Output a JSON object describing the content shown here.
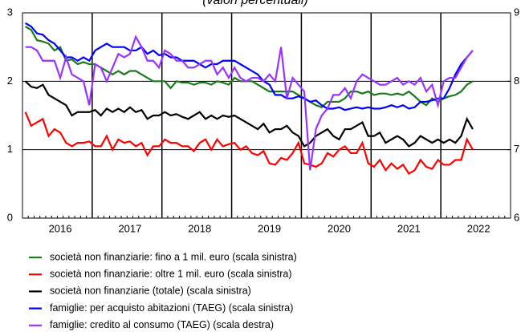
{
  "chart_data": {
    "type": "line",
    "title": "(valori percentuali)",
    "categories": [
      null,
      null,
      null,
      null,
      null,
      null,
      "2016",
      null,
      null,
      null,
      null,
      null,
      null,
      null,
      null,
      null,
      null,
      null,
      "2017",
      null,
      null,
      null,
      null,
      null,
      null,
      null,
      null,
      null,
      null,
      null,
      "2018",
      null,
      null,
      null,
      null,
      null,
      null,
      null,
      null,
      null,
      null,
      null,
      "2019",
      null,
      null,
      null,
      null,
      null,
      null,
      null,
      null,
      null,
      null,
      null,
      "2020",
      null,
      null,
      null,
      null,
      null,
      null,
      null,
      null,
      null,
      null,
      null,
      "2021",
      null,
      null,
      null,
      null,
      null,
      null,
      null,
      null,
      null,
      null,
      null,
      "2022",
      null,
      null,
      null,
      null,
      null
    ],
    "ylim": [
      0,
      3
    ],
    "yticks": [
      0,
      1,
      2,
      3
    ],
    "y2lim": [
      6,
      9
    ],
    "y2ticks": [
      6,
      7,
      8,
      9
    ],
    "grid": true,
    "series": [
      {
        "name": "società non finanziarie: fino a 1 mil. euro (scala sinistra)",
        "color": "#1a7a1a",
        "values": [
          2.8,
          2.75,
          2.6,
          2.58,
          2.55,
          2.45,
          2.5,
          2.3,
          2.32,
          2.25,
          2.28,
          2.25,
          2.25,
          2.2,
          2.15,
          2.1,
          2.15,
          2.1,
          2.15,
          2.15,
          2.1,
          2.05,
          2.0,
          2.0,
          2.0,
          1.9,
          2.0,
          1.98,
          1.98,
          1.95,
          1.98,
          1.98,
          1.95,
          2.0,
          1.98,
          1.95,
          2.05,
          2.0,
          2.0,
          2.0,
          1.95,
          1.9,
          1.85,
          1.85,
          1.85,
          1.85,
          1.85,
          1.8,
          1.75,
          1.7,
          1.65,
          1.62,
          1.7,
          1.7,
          1.7,
          1.75,
          1.85,
          1.85,
          1.82,
          1.85,
          1.8,
          1.82,
          1.82,
          1.8,
          1.82,
          1.8,
          1.85,
          1.78,
          1.7,
          1.65,
          1.75,
          1.7,
          1.75,
          1.78,
          1.8,
          1.85,
          1.95,
          2.0,
          null,
          null,
          null,
          null,
          null,
          null
        ]
      },
      {
        "name": "società non finanziarie: oltre 1 mil. euro (scala sinistra)",
        "color": "#ff0000",
        "values": [
          1.55,
          1.35,
          1.4,
          1.45,
          1.2,
          1.3,
          1.25,
          1.1,
          1.05,
          1.1,
          1.1,
          1.12,
          1.05,
          1.05,
          1.2,
          1.0,
          1.15,
          1.1,
          1.12,
          1.05,
          1.1,
          0.92,
          1.05,
          1.05,
          1.15,
          1.1,
          1.1,
          1.05,
          1.05,
          0.98,
          1.1,
          1.15,
          1.0,
          1.15,
          1.05,
          1.08,
          1.1,
          1.0,
          1.05,
          0.95,
          0.92,
          0.98,
          0.8,
          0.78,
          0.88,
          0.85,
          0.95,
          1.1,
          0.8,
          0.78,
          0.75,
          0.8,
          0.95,
          0.9,
          1.0,
          1.05,
          0.95,
          0.95,
          1.1,
          0.8,
          0.75,
          0.85,
          0.7,
          0.8,
          0.72,
          0.78,
          0.65,
          0.7,
          0.85,
          0.75,
          0.72,
          0.85,
          0.78,
          0.78,
          0.85,
          0.85,
          1.15,
          1.0,
          null,
          null,
          null,
          null,
          null,
          null
        ]
      },
      {
        "name": "società non finanziarie (totale) (scala sinistra)",
        "color": "#000000",
        "values": [
          2.0,
          1.92,
          1.9,
          1.95,
          1.8,
          1.75,
          1.7,
          1.65,
          1.5,
          1.55,
          1.55,
          1.55,
          1.58,
          1.5,
          1.6,
          1.55,
          1.6,
          1.55,
          1.62,
          1.55,
          1.58,
          1.45,
          1.5,
          1.5,
          1.55,
          1.5,
          1.52,
          1.48,
          1.45,
          1.5,
          1.55,
          1.45,
          1.5,
          1.45,
          1.5,
          1.48,
          1.5,
          1.45,
          1.4,
          1.35,
          1.3,
          1.38,
          1.25,
          1.3,
          1.3,
          1.35,
          1.25,
          1.2,
          1.05,
          1.1,
          1.2,
          1.25,
          1.3,
          1.2,
          1.15,
          1.3,
          1.3,
          1.35,
          1.4,
          1.2,
          1.2,
          1.25,
          1.1,
          1.15,
          1.2,
          1.15,
          1.05,
          1.1,
          1.2,
          1.15,
          1.1,
          1.15,
          1.1,
          1.15,
          1.1,
          1.2,
          1.45,
          1.3,
          null,
          null,
          null,
          null,
          null,
          null
        ]
      },
      {
        "name": "famiglie: per acquisto abitazioni (TAEG) (scala sinistra)",
        "color": "#0000ff",
        "values": [
          2.85,
          2.8,
          2.7,
          2.68,
          2.6,
          2.55,
          2.45,
          2.35,
          2.35,
          2.3,
          2.35,
          2.3,
          2.45,
          2.5,
          2.55,
          2.5,
          2.5,
          2.5,
          2.45,
          2.45,
          2.5,
          2.4,
          2.45,
          2.38,
          2.4,
          2.35,
          2.35,
          2.3,
          2.3,
          2.3,
          2.25,
          2.2,
          2.25,
          2.25,
          2.3,
          2.3,
          2.3,
          2.25,
          2.2,
          2.15,
          2.1,
          2.0,
          1.95,
          1.8,
          1.8,
          1.75,
          1.75,
          1.78,
          1.75,
          1.7,
          1.72,
          1.65,
          1.6,
          1.6,
          1.62,
          1.58,
          1.6,
          1.62,
          1.6,
          1.62,
          1.6,
          1.6,
          1.62,
          1.65,
          1.62,
          1.65,
          1.6,
          1.62,
          1.7,
          1.7,
          1.72,
          1.75,
          1.75,
          1.9,
          2.1,
          2.25,
          2.35,
          2.45,
          null,
          null,
          null,
          null,
          null,
          null
        ]
      },
      {
        "name": "famiglie: credito al consumo (TAEG) (scala destra)",
        "color": "#9933ff",
        "axis": "y2",
        "values": [
          8.5,
          8.5,
          8.45,
          8.3,
          8.3,
          8.3,
          8.05,
          8.35,
          8.1,
          8.05,
          8.0,
          7.65,
          8.25,
          8.2,
          8.0,
          8.2,
          8.4,
          8.35,
          8.4,
          8.65,
          8.5,
          8.3,
          8.3,
          8.2,
          8.45,
          8.4,
          8.3,
          8.3,
          8.2,
          8.2,
          8.25,
          8.3,
          8.3,
          8.1,
          8.2,
          8.05,
          8.2,
          8.05,
          8.0,
          8.05,
          8.05,
          8.0,
          8.1,
          8.0,
          8.5,
          7.75,
          8.05,
          7.95,
          7.85,
          6.7,
          7.3,
          7.5,
          7.6,
          7.8,
          7.8,
          7.9,
          7.75,
          8.0,
          8.1,
          8.05,
          8.0,
          7.95,
          7.95,
          8.0,
          8.05,
          7.95,
          8.0,
          7.95,
          8.05,
          7.85,
          7.95,
          7.65,
          8.0,
          8.05,
          8.05,
          8.2,
          8.35,
          8.45,
          null,
          null,
          null,
          null,
          null,
          null
        ]
      }
    ]
  }
}
